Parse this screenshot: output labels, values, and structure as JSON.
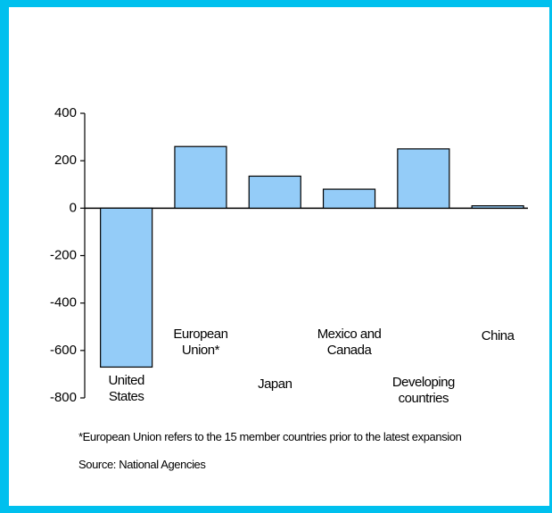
{
  "chart_data": {
    "type": "bar",
    "categories": [
      "United States",
      "European Union*",
      "Japan",
      "Mexico and Canada",
      "Developing countries",
      "China"
    ],
    "values": [
      -670,
      260,
      135,
      80,
      250,
      10
    ],
    "color": "#94ccf8",
    "ylim": [
      -800,
      400
    ],
    "yticks": [
      -800,
      -600,
      -400,
      -200,
      0,
      200,
      400
    ],
    "footnote": "*European Union refers to the 15 member countries prior to the latest expansion",
    "source": "Source: National Agencies"
  }
}
